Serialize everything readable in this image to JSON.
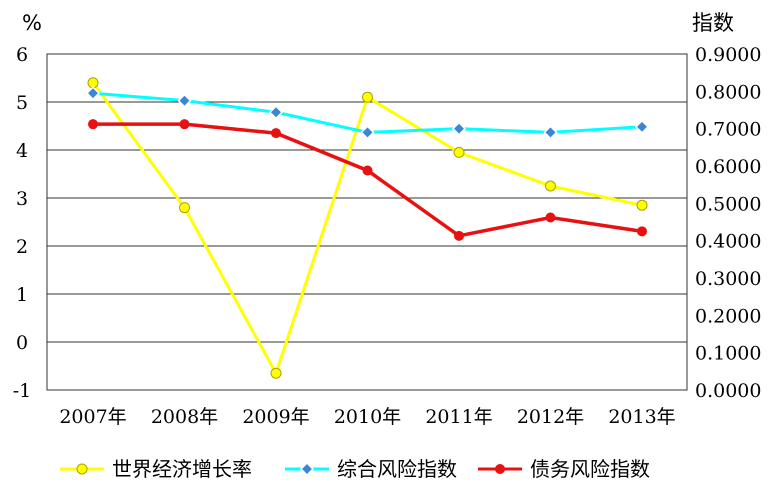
{
  "chart_data": {
    "type": "line",
    "categories": [
      "2007年",
      "2008年",
      "2009年",
      "2010年",
      "2011年",
      "2012年",
      "2013年"
    ],
    "y_left": {
      "unit": "%",
      "min": -1,
      "max": 6,
      "ticks": [
        "-1",
        "0",
        "1",
        "2",
        "3",
        "4",
        "5",
        "6"
      ]
    },
    "y_right": {
      "unit": "指数",
      "min": 0,
      "max": 0.9,
      "ticks": [
        "0.0000",
        "0.1000",
        "0.2000",
        "0.3000",
        "0.4000",
        "0.5000",
        "0.6000",
        "0.7000",
        "0.8000",
        "0.9000"
      ]
    },
    "grid": true,
    "legend_position": "bottom",
    "series": [
      {
        "name": "世界经济增长率",
        "axis": "left",
        "color": "#FFFF00",
        "marker": "circle",
        "values": [
          5.4,
          2.8,
          -0.65,
          5.1,
          3.95,
          3.25,
          2.85
        ]
      },
      {
        "name": "综合风险指数",
        "axis": "right",
        "color": "#00FFFF",
        "marker": "diamond",
        "values": [
          0.795,
          0.775,
          0.744,
          0.69,
          0.7,
          0.69,
          0.705
        ]
      },
      {
        "name": "债务风险指数",
        "axis": "right",
        "color": "#E81010",
        "marker": "circle",
        "values": [
          0.712,
          0.712,
          0.688,
          0.588,
          0.413,
          0.462,
          0.425
        ]
      }
    ]
  }
}
